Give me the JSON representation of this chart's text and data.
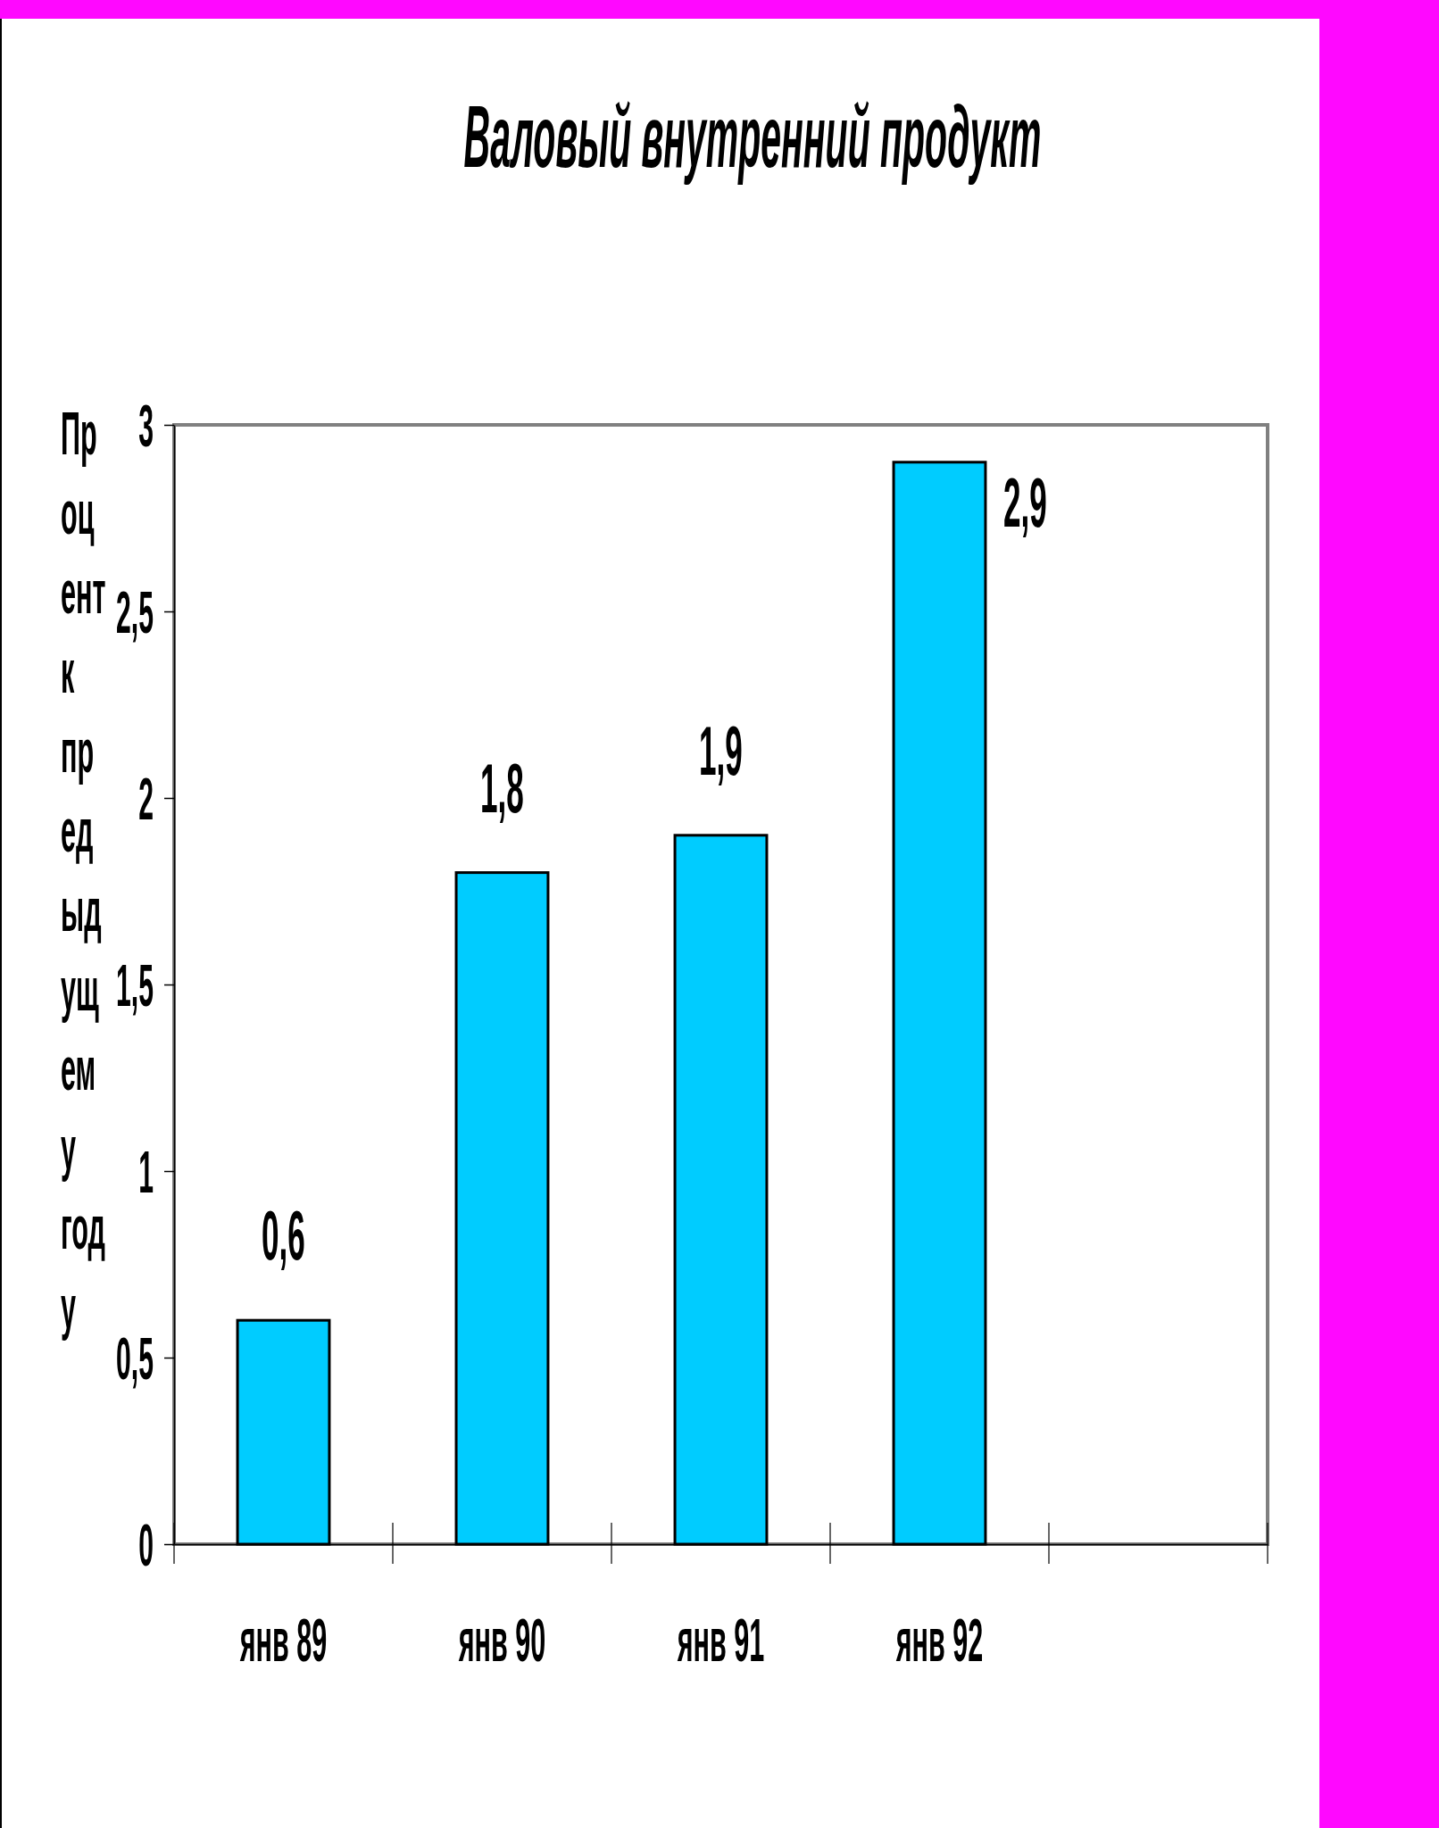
{
  "chart_data": {
    "type": "bar",
    "title": "Валовый внутренний продукт",
    "ylabel": "Процент к предыдущему году",
    "categories": [
      "янв 89",
      "янв 90",
      "янв 91",
      "янв 92",
      null
    ],
    "values": [
      0.6,
      1.8,
      1.9,
      2.9,
      null
    ],
    "color": "#00ccff",
    "value_labels": [
      "0,6",
      "1,8",
      "1,9",
      "2,9",
      null
    ],
    "ylim": [
      0,
      3
    ],
    "yticks": [
      0,
      {
        "value": 0.5,
        "label": "0,5"
      },
      1,
      {
        "value": 1.5,
        "label": "1,5"
      },
      2,
      {
        "value": 2.5,
        "label": "2,5"
      },
      3
    ]
  }
}
